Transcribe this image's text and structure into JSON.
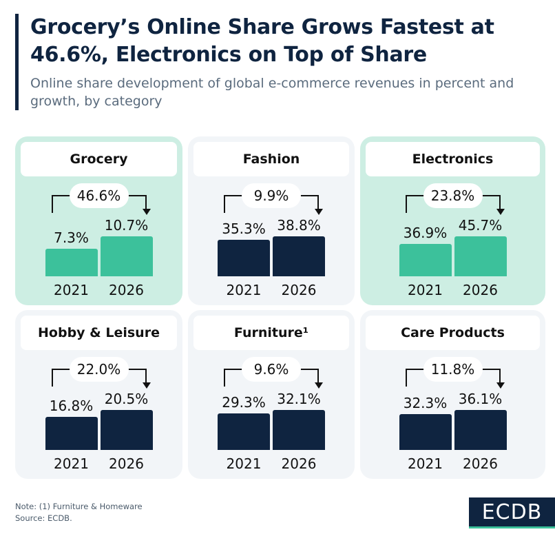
{
  "title": "Grocery’s Online Share Grows Fastest at 46.6%, Electronics on Top of Share",
  "subtitle": "Online share development of global e-commerce revenues in percent and growth, by category",
  "note": "Note: (1) Furniture & Homeware",
  "source": "Source: ECDB.",
  "logo": "ECDB",
  "colors": {
    "green": "#3cc19b",
    "navy": "#0f2440",
    "green_bg": "#cdeee3",
    "gray_bg": "#f2f5f8"
  },
  "chart_data": {
    "type": "bar",
    "categories": [
      "2021",
      "2026"
    ],
    "unit": "%",
    "panels": [
      {
        "name": "Grocery",
        "growth": "46.6%",
        "values": [
          7.3,
          10.7
        ],
        "labels": [
          "7.3%",
          "10.7%"
        ],
        "theme": "green"
      },
      {
        "name": "Fashion",
        "growth": "9.9%",
        "values": [
          35.3,
          38.8
        ],
        "labels": [
          "35.3%",
          "38.8%"
        ],
        "theme": "gray"
      },
      {
        "name": "Electronics",
        "growth": "23.8%",
        "values": [
          36.9,
          45.7
        ],
        "labels": [
          "36.9%",
          "45.7%"
        ],
        "theme": "green"
      },
      {
        "name": "Hobby & Leisure",
        "growth": "22.0%",
        "values": [
          16.8,
          20.5
        ],
        "labels": [
          "16.8%",
          "20.5%"
        ],
        "theme": "gray"
      },
      {
        "name": "Furniture¹",
        "growth": "9.6%",
        "values": [
          29.3,
          32.1
        ],
        "labels": [
          "29.3%",
          "32.1%"
        ],
        "theme": "gray"
      },
      {
        "name": "Care Products",
        "growth": "11.8%",
        "values": [
          32.3,
          36.1
        ],
        "labels": [
          "32.3%",
          "36.1%"
        ],
        "theme": "gray"
      }
    ]
  }
}
